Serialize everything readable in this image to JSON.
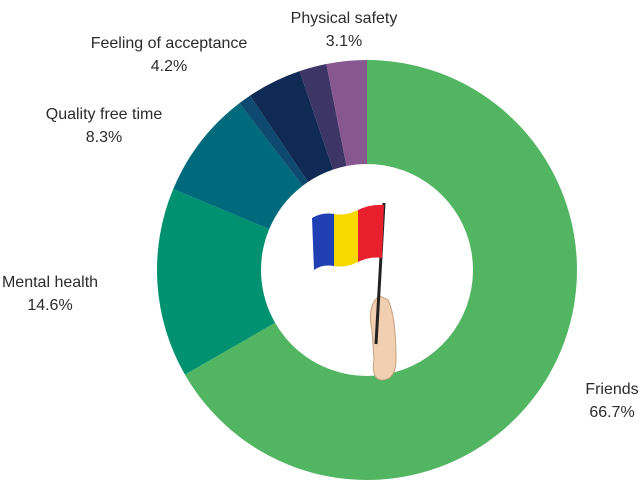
{
  "chart_data": {
    "type": "donut",
    "categories": [
      "Friends",
      "Mental health",
      "Quality free time",
      null,
      "Feeling of acceptance",
      null,
      "Physical safety"
    ],
    "values": [
      66.7,
      14.6,
      8.3,
      1.0,
      4.2,
      2.1,
      3.1
    ],
    "value_labels": [
      "66.7%",
      "14.6%",
      "8.3%",
      null,
      "4.2%",
      null,
      "3.1%"
    ],
    "colors": [
      "#52b562",
      "#009270",
      "#006a7d",
      "#0e4a6f",
      "#0f2a55",
      "#3c3565",
      "#86588f"
    ]
  }
}
